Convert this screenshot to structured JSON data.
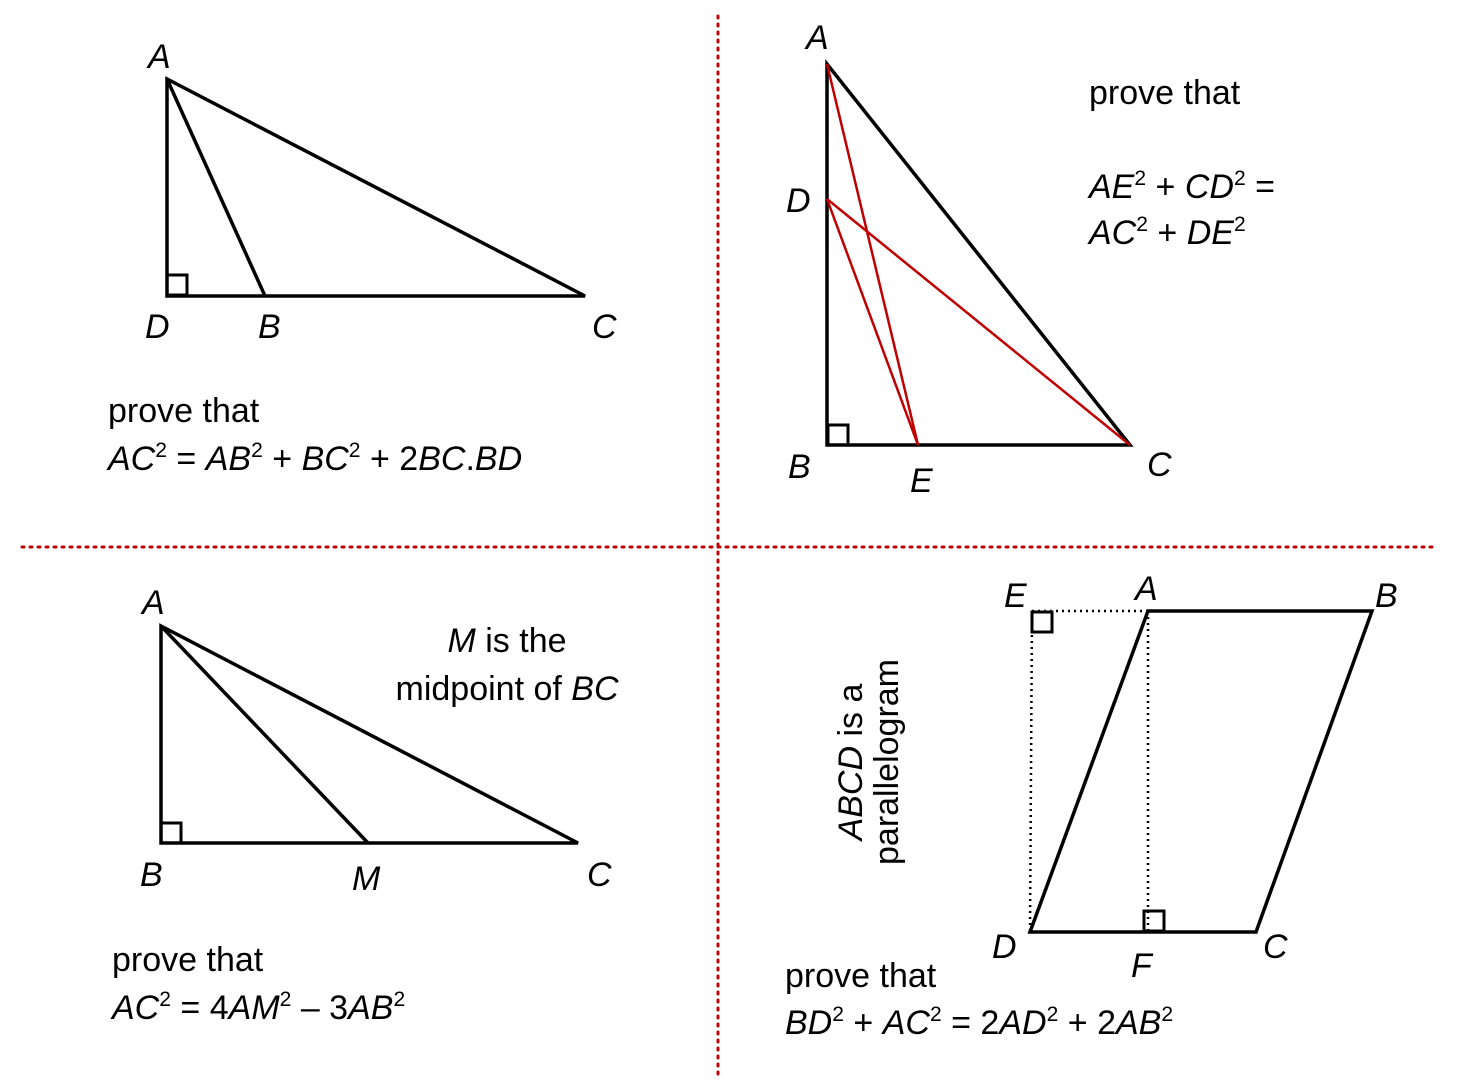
{
  "divider_color": "#c00000",
  "accent_line_color": "#c00000",
  "q1": {
    "labels": {
      "A": "A",
      "D": "D",
      "B": "B",
      "C": "C"
    },
    "prove_that": "prove that",
    "statement": [
      {
        "t": "AC",
        "i": true
      },
      {
        "t": "2",
        "sup": true
      },
      {
        "t": " = "
      },
      {
        "t": "AB",
        "i": true
      },
      {
        "t": "2",
        "sup": true
      },
      {
        "t": " + "
      },
      {
        "t": "BC",
        "i": true
      },
      {
        "t": "2",
        "sup": true
      },
      {
        "t": " + 2"
      },
      {
        "t": "BC",
        "i": true
      },
      {
        "t": "."
      },
      {
        "t": "BD",
        "i": true
      }
    ]
  },
  "q2": {
    "labels": {
      "A": "A",
      "D": "D",
      "B": "B",
      "E": "E",
      "C": "C"
    },
    "prove_that": "prove that",
    "statement_line1": [
      {
        "t": "AE",
        "i": true
      },
      {
        "t": "2",
        "sup": true
      },
      {
        "t": " + "
      },
      {
        "t": "CD",
        "i": true
      },
      {
        "t": "2",
        "sup": true
      },
      {
        "t": " ="
      }
    ],
    "statement_line2": [
      {
        "t": "AC",
        "i": true
      },
      {
        "t": "2",
        "sup": true
      },
      {
        "t": " + "
      },
      {
        "t": "DE",
        "i": true
      },
      {
        "t": "2",
        "sup": true
      }
    ]
  },
  "q3": {
    "labels": {
      "A": "A",
      "B": "B",
      "M": "M",
      "C": "C"
    },
    "given_line1": [
      {
        "t": "M",
        "i": true
      },
      {
        "t": " is the"
      }
    ],
    "given_line2": [
      {
        "t": "midpoint of "
      },
      {
        "t": "BC",
        "i": true
      }
    ],
    "prove_that": "prove that",
    "statement": [
      {
        "t": "AC",
        "i": true
      },
      {
        "t": "2",
        "sup": true
      },
      {
        "t": " = 4"
      },
      {
        "t": "AM",
        "i": true
      },
      {
        "t": "2",
        "sup": true
      },
      {
        "t": " – 3"
      },
      {
        "t": "AB",
        "i": true
      },
      {
        "t": "2",
        "sup": true
      }
    ]
  },
  "q4": {
    "labels": {
      "E": "E",
      "A": "A",
      "B": "B",
      "D": "D",
      "F": "F",
      "C": "C"
    },
    "given_line1": [
      {
        "t": "ABCD",
        "i": true
      },
      {
        "t": " is a"
      }
    ],
    "given_line2": [
      {
        "t": "parallelogram"
      }
    ],
    "prove_that": "prove that",
    "statement": [
      {
        "t": "BD",
        "i": true
      },
      {
        "t": "2",
        "sup": true
      },
      {
        "t": " + "
      },
      {
        "t": "AC",
        "i": true
      },
      {
        "t": "2",
        "sup": true
      },
      {
        "t": " =  2"
      },
      {
        "t": "AD",
        "i": true
      },
      {
        "t": "2",
        "sup": true
      },
      {
        "t": " + 2"
      },
      {
        "t": "AB",
        "i": true
      },
      {
        "t": "2",
        "sup": true
      }
    ]
  }
}
